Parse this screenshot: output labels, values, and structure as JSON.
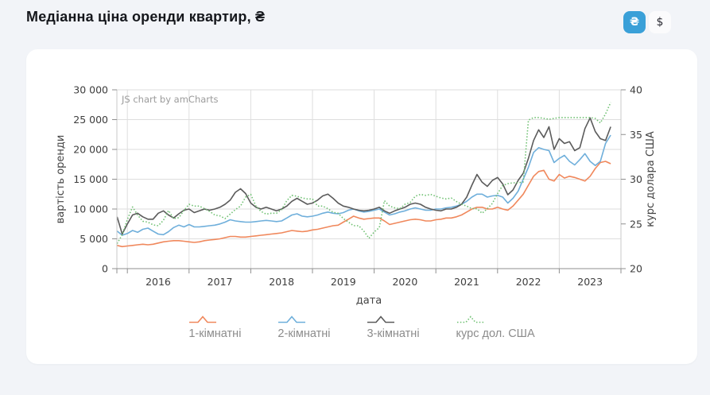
{
  "header": {
    "title": "Медіанна ціна оренди квартир, ₴",
    "currency_toggle": {
      "uah_label": "₴",
      "usd_label": "$",
      "active": "uah"
    }
  },
  "watermark": "JS chart by amCharts",
  "colors": {
    "accent_blue": "#3aa0d8",
    "page_background": "#f2f4f8",
    "card_background": "#ffffff",
    "grid": "#dedede",
    "axis_line": "#c8c8c8",
    "bottom_axis_line": "#8f8f8f",
    "tick_text": "#3d3d3d",
    "legend_text": "#8c8c8c",
    "watermark_text": "#9b9b9b"
  },
  "chart_data": {
    "type": "line",
    "title": "Медіанна ціна оренди квартир, ₴",
    "xlabel": "дата",
    "x_axis": {
      "label": "дата",
      "tick_years": [
        2016,
        2017,
        2018,
        2019,
        2020,
        2021,
        2022,
        2023
      ],
      "domain": [
        2015.83,
        2024.0
      ]
    },
    "left_axis": {
      "title": "вартість оренди",
      "min": 0,
      "max": 30000,
      "tick_step": 5000,
      "ticks": [
        0,
        5000,
        10000,
        15000,
        20000,
        25000,
        30000
      ],
      "tick_labels": [
        "0",
        "5 000",
        "10 000",
        "15 000",
        "20 000",
        "25 000",
        "30 000"
      ]
    },
    "right_axis": {
      "title": "курс долара США",
      "min": 20,
      "max": 40,
      "tick_step": 5,
      "ticks": [
        20,
        25,
        30,
        35,
        40
      ],
      "tick_labels": [
        "20",
        "25",
        "30",
        "35",
        "40"
      ]
    },
    "grid": true,
    "legend_position": "bottom",
    "x_start_year_month": "2015-11",
    "x_months_step": 1,
    "series": [
      {
        "name": "1-кімнатні",
        "axis": "left",
        "color": "#f0885c",
        "style": "solid",
        "values": [
          3900,
          3700,
          3800,
          3900,
          4000,
          4100,
          4000,
          4100,
          4300,
          4500,
          4600,
          4700,
          4700,
          4600,
          4500,
          4400,
          4500,
          4700,
          4800,
          4900,
          5000,
          5200,
          5400,
          5400,
          5300,
          5300,
          5400,
          5500,
          5600,
          5700,
          5800,
          5900,
          6000,
          6200,
          6400,
          6300,
          6200,
          6300,
          6500,
          6600,
          6800,
          7000,
          7200,
          7300,
          7800,
          8300,
          8800,
          8500,
          8300,
          8400,
          8500,
          8500,
          8000,
          7400,
          7600,
          7800,
          8000,
          8200,
          8300,
          8200,
          8000,
          8000,
          8200,
          8300,
          8500,
          8500,
          8700,
          9000,
          9500,
          10000,
          10300,
          10300,
          10000,
          10000,
          10300,
          10000,
          9800,
          10500,
          11500,
          12500,
          14000,
          15500,
          16300,
          16500,
          15000,
          14700,
          15800,
          15200,
          15500,
          15300,
          15000,
          14700,
          15500,
          16800,
          17800,
          18000,
          17600
        ]
      },
      {
        "name": "2-кімнатні",
        "axis": "left",
        "color": "#6fafdb",
        "style": "solid",
        "values": [
          6300,
          5600,
          5900,
          6400,
          6100,
          6600,
          6800,
          6300,
          5800,
          5700,
          6200,
          6900,
          7300,
          7000,
          7400,
          7000,
          7000,
          7100,
          7200,
          7300,
          7500,
          7800,
          8200,
          8000,
          7900,
          7800,
          7800,
          7900,
          8000,
          8100,
          8000,
          7900,
          8000,
          8500,
          9000,
          9200,
          8800,
          8700,
          8800,
          9000,
          9300,
          9500,
          9300,
          9200,
          9400,
          9800,
          10000,
          9700,
          9500,
          9600,
          9800,
          10000,
          9500,
          9000,
          9200,
          9500,
          9700,
          10000,
          10200,
          10000,
          9800,
          9800,
          10000,
          10000,
          10200,
          10300,
          10500,
          10800,
          11300,
          12000,
          12500,
          12500,
          12000,
          12200,
          12300,
          12000,
          11000,
          11800,
          13000,
          15000,
          17000,
          19500,
          20300,
          20000,
          19800,
          17800,
          18500,
          19000,
          18000,
          17400,
          18300,
          19300,
          18000,
          17300,
          18000,
          21000,
          22400
        ]
      },
      {
        "name": "3-кімнатні",
        "axis": "left",
        "color": "#5b5b5b",
        "style": "solid",
        "values": [
          8700,
          5800,
          7500,
          9000,
          9300,
          8700,
          8300,
          8300,
          9300,
          9700,
          9000,
          8500,
          9200,
          9800,
          10000,
          9400,
          9700,
          10000,
          9800,
          10000,
          10300,
          10800,
          11500,
          12800,
          13400,
          12600,
          11000,
          10300,
          10000,
          10300,
          10000,
          9700,
          10000,
          10500,
          11300,
          11800,
          11300,
          10800,
          11000,
          11500,
          12200,
          12500,
          11800,
          11000,
          10500,
          10300,
          10000,
          9800,
          9700,
          9800,
          10000,
          10300,
          9700,
          9300,
          9700,
          10000,
          10300,
          10800,
          11000,
          10800,
          10300,
          10000,
          9800,
          9700,
          10000,
          10000,
          10300,
          10800,
          12000,
          14000,
          15800,
          14500,
          13800,
          14800,
          15300,
          14200,
          12400,
          13200,
          14800,
          16000,
          18500,
          21500,
          23300,
          22000,
          23800,
          20000,
          21800,
          21000,
          21300,
          19800,
          20300,
          23500,
          25300,
          23000,
          21800,
          21500,
          23800
        ]
      },
      {
        "name": "курс дол. США",
        "axis": "right",
        "color": "#6ec071",
        "style": "dotted",
        "values": [
          22.8,
          23.8,
          25.5,
          26.9,
          26.0,
          25.3,
          25.2,
          24.9,
          24.8,
          25.4,
          26.5,
          25.6,
          25.7,
          26.5,
          27.2,
          27.0,
          27.0,
          26.7,
          26.4,
          26.0,
          25.9,
          25.6,
          26.1,
          26.6,
          27.0,
          28.0,
          28.3,
          27.0,
          26.4,
          26.1,
          26.2,
          26.2,
          26.6,
          27.6,
          28.2,
          28.1,
          27.9,
          27.8,
          27.8,
          27.0,
          27.0,
          26.7,
          26.3,
          26.2,
          25.6,
          25.2,
          24.8,
          24.8,
          24.2,
          23.4,
          24.1,
          24.6,
          27.6,
          27.0,
          26.8,
          26.7,
          27.2,
          27.4,
          28.1,
          28.3,
          28.2,
          28.3,
          28.1,
          27.9,
          27.8,
          27.9,
          27.5,
          27.2,
          27.0,
          26.7,
          26.7,
          26.2,
          26.7,
          27.3,
          28.4,
          29.3,
          29.5,
          29.6,
          29.6,
          29.7,
          36.6,
          36.9,
          36.9,
          36.8,
          36.7,
          36.8,
          36.9,
          36.9,
          36.9,
          36.9,
          36.9,
          36.9,
          36.9,
          36.8,
          36.3,
          37.3,
          38.6
        ]
      }
    ]
  }
}
